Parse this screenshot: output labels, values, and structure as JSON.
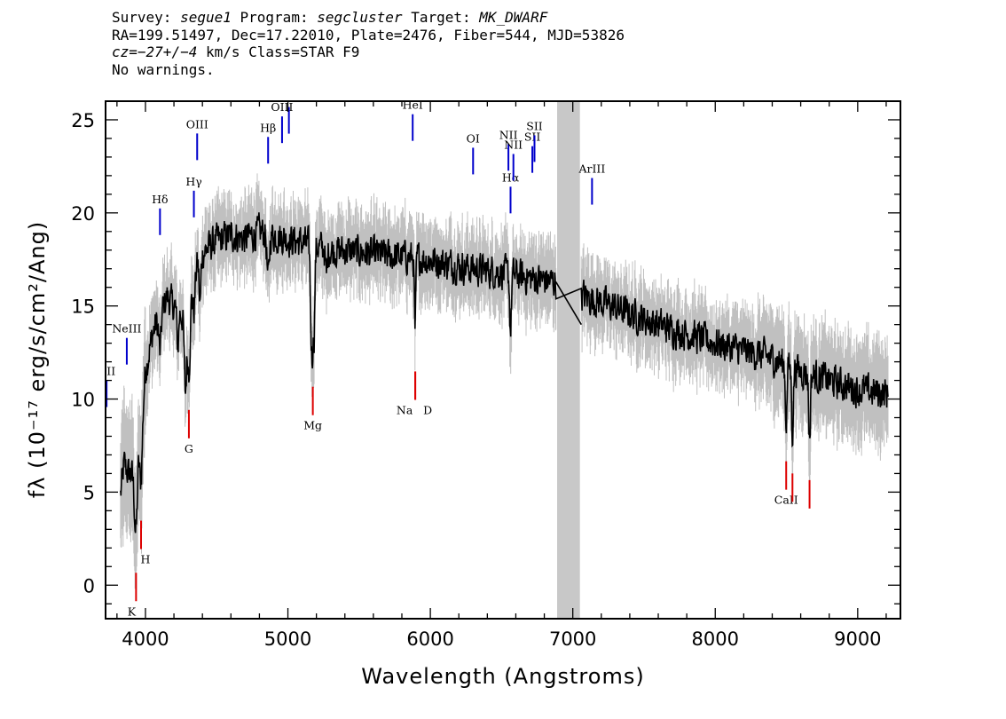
{
  "header": {
    "survey_label": "Survey:",
    "survey": "segue1",
    "program_label": "Program:",
    "program": "segcluster",
    "target_label": "Target:",
    "target": "MK_DWARF",
    "line2": "RA=199.51497, Dec=17.22010, Plate=2476, Fiber=544, MJD=53826",
    "cz_label": "cz=",
    "cz_value": "−27+/−4",
    "cz_unit_class": " km/s Class=STAR F9",
    "warnings": "No warnings."
  },
  "chart_data": {
    "type": "line",
    "xlabel": "Wavelength (Angstroms)",
    "ylabel": "fλ (10⁻¹⁷ erg/s/cm²/Ang)",
    "xlim": [
      3720,
      9300
    ],
    "ylim": [
      -1.8,
      26
    ],
    "x_ticks": [
      4000,
      5000,
      6000,
      7000,
      8000,
      9000
    ],
    "y_ticks": [
      0,
      5,
      10,
      15,
      20,
      25
    ],
    "masked_region": [
      6890,
      7050
    ],
    "colors": {
      "flux": "#000000",
      "error_band": "#c0c0c0",
      "mask": "#c8c8c8",
      "emission_line": "#0000cc",
      "absorption_line": "#dd0000"
    },
    "continuum": {
      "x": [
        3820,
        3850,
        3880,
        3920,
        3960,
        4000,
        4050,
        4100,
        4150,
        4200,
        4260,
        4300,
        4350,
        4400,
        4450,
        4500,
        4600,
        4700,
        4800,
        4900,
        5000,
        5100,
        5200,
        5300,
        5500,
        5700,
        5900,
        6100,
        6300,
        6500,
        6700,
        6890,
        7050,
        7200,
        7400,
        7600,
        7800,
        8000,
        8200,
        8400,
        8600,
        8800,
        9000,
        9200
      ],
      "y": [
        4.5,
        6.5,
        6.0,
        6.0,
        8.5,
        11.5,
        13.5,
        14.5,
        15.5,
        15.0,
        14.5,
        15.5,
        17.0,
        17.8,
        18.2,
        18.5,
        18.8,
        18.6,
        19.0,
        18.8,
        18.6,
        18.4,
        18.2,
        18.0,
        17.9,
        17.7,
        17.6,
        17.3,
        17.0,
        16.8,
        16.5,
        16.3,
        15.6,
        15.2,
        14.6,
        14.0,
        13.5,
        13.0,
        12.6,
        12.2,
        11.5,
        11.0,
        10.5,
        10.3
      ]
    },
    "absorption_features": [
      {
        "x": 3934,
        "depth": 4.0,
        "width": 10
      },
      {
        "x": 3969,
        "depth": 3.5,
        "width": 10
      },
      {
        "x": 4102,
        "depth": 2.0,
        "width": 8
      },
      {
        "x": 4227,
        "depth": 2.0,
        "width": 6
      },
      {
        "x": 4280,
        "depth": 4.5,
        "width": 8
      },
      {
        "x": 4305,
        "depth": 4.0,
        "width": 10
      },
      {
        "x": 4340,
        "depth": 2.0,
        "width": 8
      },
      {
        "x": 4383,
        "depth": 2.5,
        "width": 6
      },
      {
        "x": 4861,
        "depth": 2.5,
        "width": 8
      },
      {
        "x": 5168,
        "depth": 6.0,
        "width": 8
      },
      {
        "x": 5184,
        "depth": 4.0,
        "width": 6
      },
      {
        "x": 5270,
        "depth": 1.5,
        "width": 6
      },
      {
        "x": 5893,
        "depth": 4.0,
        "width": 5
      },
      {
        "x": 6563,
        "depth": 3.0,
        "width": 6
      },
      {
        "x": 8498,
        "depth": 3.0,
        "width": 6
      },
      {
        "x": 8542,
        "depth": 3.5,
        "width": 6
      },
      {
        "x": 8662,
        "depth": 3.5,
        "width": 6
      }
    ],
    "emission_lines": [
      {
        "label": "OII",
        "x": 3727
      },
      {
        "label": "NeIII",
        "x": 3869
      },
      {
        "label": "Hδ",
        "x": 4102
      },
      {
        "label": "Hγ",
        "x": 4340
      },
      {
        "label": "OIII",
        "x": 4363
      },
      {
        "label": "Hβ",
        "x": 4861
      },
      {
        "label": "OIII",
        "x": 4959
      },
      {
        "label": "OIII",
        "x": 5007
      },
      {
        "label": "HeI",
        "x": 5876
      },
      {
        "label": "OI",
        "x": 6300
      },
      {
        "label": "NII",
        "x": 6548
      },
      {
        "label": "Hα",
        "x": 6563
      },
      {
        "label": "NII",
        "x": 6583
      },
      {
        "label": "SII",
        "x": 6716
      },
      {
        "label": "SII",
        "x": 6731
      },
      {
        "label": "ArIII",
        "x": 7135
      }
    ],
    "absorption_lines": [
      {
        "label": "K",
        "x": 3934
      },
      {
        "label": "H",
        "x": 3969
      },
      {
        "label": "G",
        "x": 4305
      },
      {
        "label": "Mg",
        "x": 5175
      },
      {
        "label": "Na",
        "x": 5894
      },
      {
        "label": "D",
        "x": 5894
      },
      {
        "label": "CaII",
        "x": 8498
      },
      {
        "label": "CaII",
        "x": 8542
      },
      {
        "label": "CaII",
        "x": 8662
      }
    ]
  }
}
